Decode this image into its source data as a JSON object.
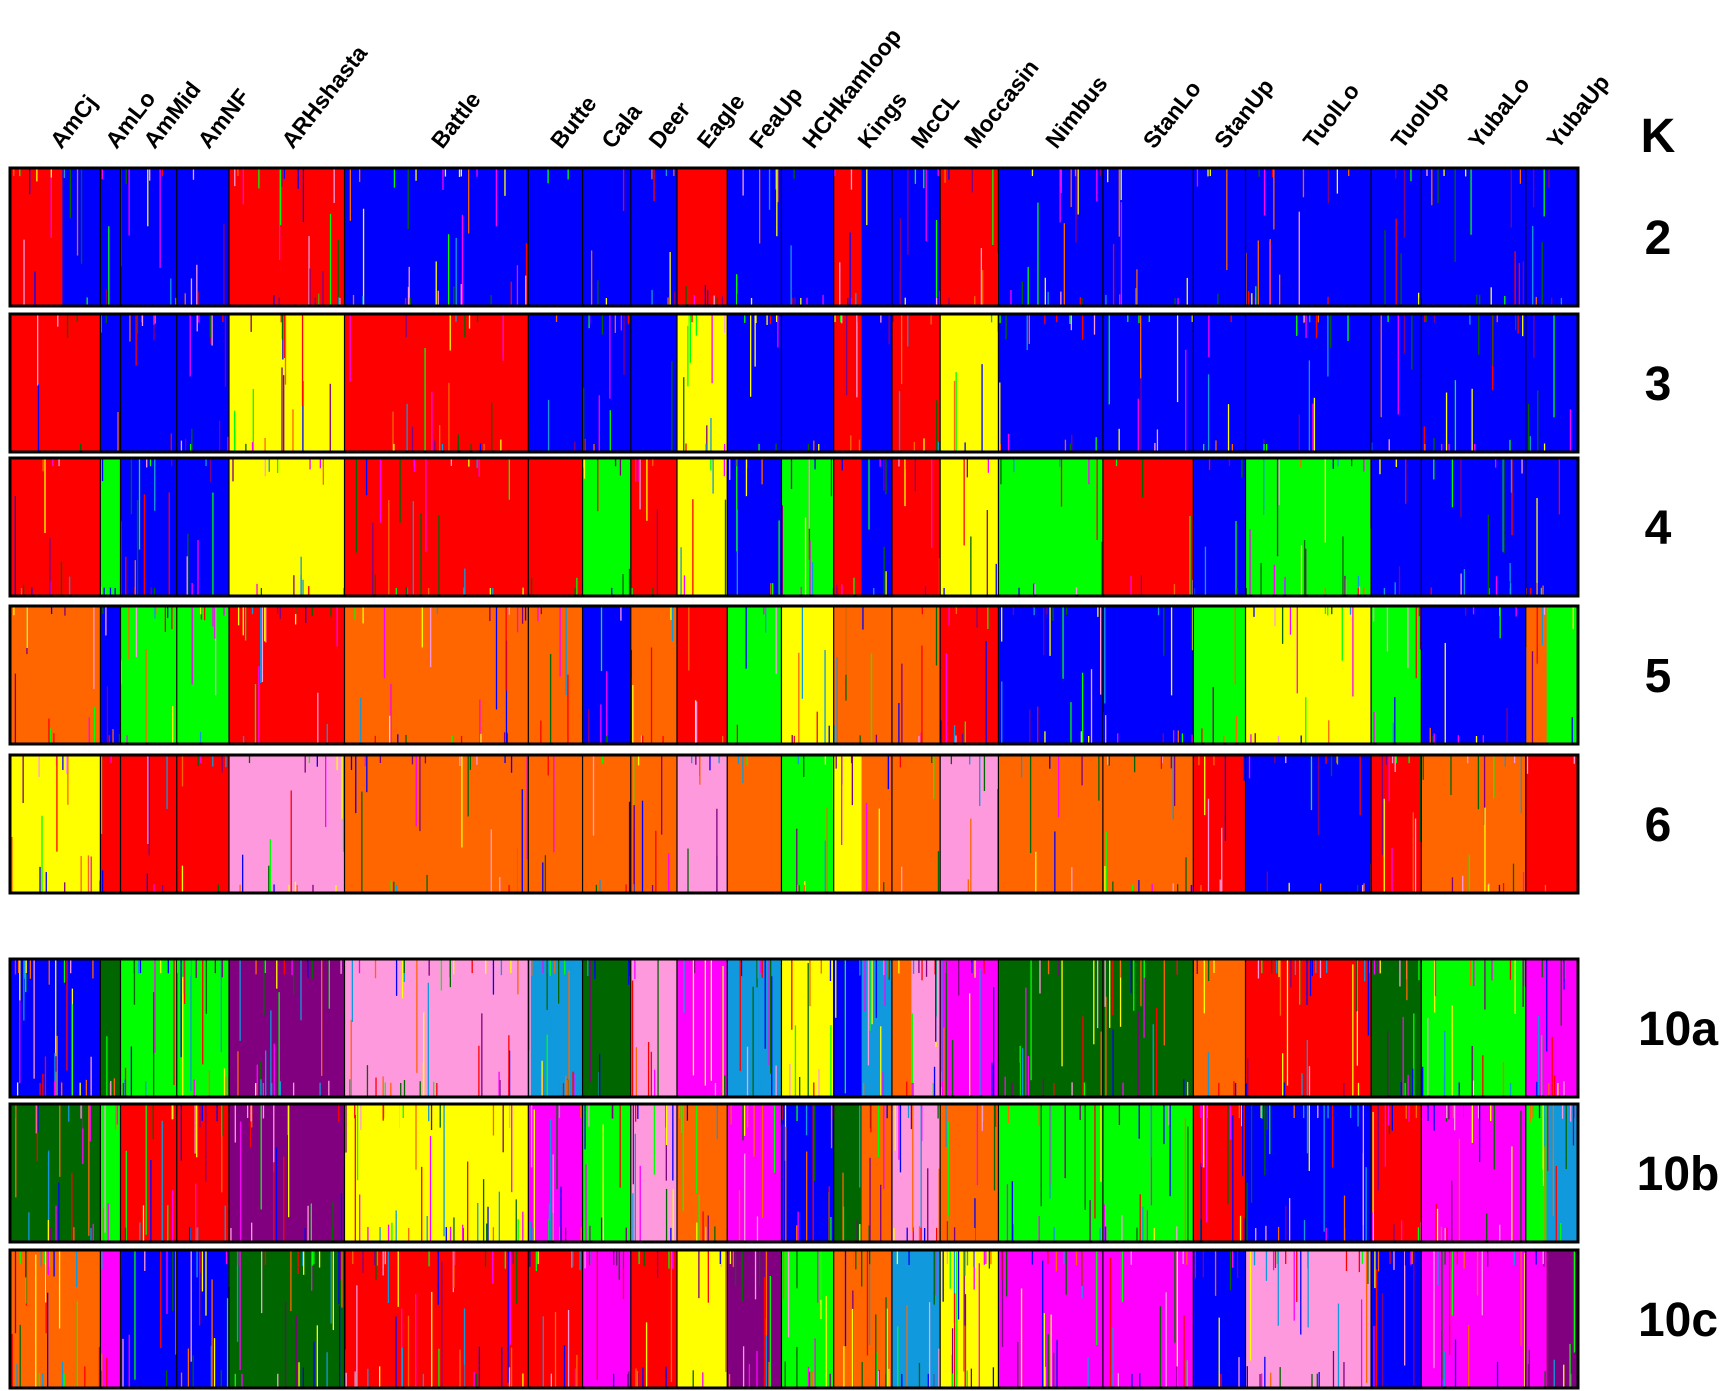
{
  "chart_data": {
    "type": "stacked-bar",
    "k_axis_label": "K",
    "populations": [
      {
        "name": "AmCj",
        "samples": 90
      },
      {
        "name": "AmLo",
        "samples": 20
      },
      {
        "name": "AmMid",
        "samples": 56
      },
      {
        "name": "AmNF",
        "samples": 52
      },
      {
        "name": "ARHshasta",
        "samples": 115
      },
      {
        "name": "Battle",
        "samples": 183
      },
      {
        "name": "Butte",
        "samples": 54
      },
      {
        "name": "Cala",
        "samples": 48
      },
      {
        "name": "Deer",
        "samples": 46
      },
      {
        "name": "Eagle",
        "samples": 50
      },
      {
        "name": "FeaUp",
        "samples": 54
      },
      {
        "name": "HCHkamloop",
        "samples": 52
      },
      {
        "name": "Kings",
        "samples": 58
      },
      {
        "name": "McCL",
        "samples": 48
      },
      {
        "name": "Moccasin",
        "samples": 58
      },
      {
        "name": "Nimbus",
        "samples": 104
      },
      {
        "name": "StanLo",
        "samples": 90
      },
      {
        "name": "StanUp",
        "samples": 52
      },
      {
        "name": "TuolLo",
        "samples": 125
      },
      {
        "name": "TuolUp",
        "samples": 50
      },
      {
        "name": "YubaLo",
        "samples": 104
      },
      {
        "name": "YubaUp",
        "samples": 52
      }
    ],
    "palette": {
      "blue": "#0000FF",
      "red": "#FF0000",
      "yellow": "#FFFF00",
      "green": "#00FF00",
      "orange": "#FF6600",
      "pink": "#FF99DD",
      "purple": "#800080",
      "darkgreen": "#006600",
      "magenta": "#FF00FF",
      "skyblue": "#1199DD"
    },
    "panels": [
      {
        "k": "2",
        "background": "blue",
        "segments": [
          {
            "from": 0,
            "to": 0.58,
            "color": "red"
          },
          {
            "from": 0.58,
            "to": 0.86,
            "color": "blue"
          },
          {
            "from": 0.86,
            "to": 4,
            "color": "blue"
          },
          {
            "from": 4,
            "to": 5,
            "color": "red"
          },
          {
            "from": 5,
            "to": 9,
            "color": "blue"
          },
          {
            "from": 9,
            "to": 10,
            "color": "red"
          },
          {
            "from": 10,
            "to": 12,
            "color": "blue"
          },
          {
            "from": 12,
            "to": 12.48,
            "color": "red"
          },
          {
            "from": 12.48,
            "to": 14,
            "color": "blue"
          },
          {
            "from": 14,
            "to": 15,
            "color": "red"
          },
          {
            "from": 15,
            "to": 22,
            "color": "blue"
          }
        ]
      },
      {
        "k": "3",
        "background": "blue",
        "segments": [
          {
            "from": 0,
            "to": 1,
            "color": "red"
          },
          {
            "from": 1,
            "to": 4,
            "color": "blue"
          },
          {
            "from": 4,
            "to": 5,
            "color": "yellow"
          },
          {
            "from": 5,
            "to": 6,
            "color": "red"
          },
          {
            "from": 6,
            "to": 9,
            "color": "blue"
          },
          {
            "from": 9,
            "to": 10,
            "color": "yellow"
          },
          {
            "from": 10,
            "to": 12,
            "color": "blue"
          },
          {
            "from": 12,
            "to": 12.48,
            "color": "red"
          },
          {
            "from": 12.48,
            "to": 13,
            "color": "blue"
          },
          {
            "from": 13,
            "to": 14,
            "color": "red"
          },
          {
            "from": 14,
            "to": 15,
            "color": "yellow"
          },
          {
            "from": 15,
            "to": 22,
            "color": "blue"
          }
        ]
      },
      {
        "k": "4",
        "background": "blue",
        "segments": [
          {
            "from": 0,
            "to": 1,
            "color": "red"
          },
          {
            "from": 1,
            "to": 2,
            "color": "green"
          },
          {
            "from": 2,
            "to": 4,
            "color": "blue"
          },
          {
            "from": 4,
            "to": 5,
            "color": "yellow"
          },
          {
            "from": 5,
            "to": 7,
            "color": "red"
          },
          {
            "from": 7,
            "to": 8,
            "color": "green"
          },
          {
            "from": 8,
            "to": 9,
            "color": "red"
          },
          {
            "from": 9,
            "to": 10,
            "color": "yellow"
          },
          {
            "from": 10,
            "to": 11,
            "color": "blue"
          },
          {
            "from": 11,
            "to": 12,
            "color": "green"
          },
          {
            "from": 12,
            "to": 12.48,
            "color": "red"
          },
          {
            "from": 12.48,
            "to": 13,
            "color": "blue"
          },
          {
            "from": 13,
            "to": 14,
            "color": "red"
          },
          {
            "from": 14,
            "to": 15,
            "color": "yellow"
          },
          {
            "from": 15,
            "to": 16,
            "color": "green"
          },
          {
            "from": 16,
            "to": 17,
            "color": "red"
          },
          {
            "from": 17,
            "to": 18,
            "color": "blue"
          },
          {
            "from": 18,
            "to": 19,
            "color": "green"
          },
          {
            "from": 19,
            "to": 22,
            "color": "blue"
          }
        ]
      },
      {
        "k": "5",
        "background": "orange",
        "segments": [
          {
            "from": 0,
            "to": 1,
            "color": "orange"
          },
          {
            "from": 1,
            "to": 2,
            "color": "blue"
          },
          {
            "from": 2,
            "to": 4,
            "color": "green"
          },
          {
            "from": 4,
            "to": 5,
            "color": "red"
          },
          {
            "from": 5,
            "to": 7,
            "color": "orange"
          },
          {
            "from": 7,
            "to": 8,
            "color": "blue"
          },
          {
            "from": 8,
            "to": 9,
            "color": "orange"
          },
          {
            "from": 9,
            "to": 10,
            "color": "red"
          },
          {
            "from": 10,
            "to": 11,
            "color": "green"
          },
          {
            "from": 11,
            "to": 12,
            "color": "yellow"
          },
          {
            "from": 12,
            "to": 14,
            "color": "orange"
          },
          {
            "from": 14,
            "to": 15,
            "color": "red"
          },
          {
            "from": 15,
            "to": 17,
            "color": "blue"
          },
          {
            "from": 17,
            "to": 18,
            "color": "green"
          },
          {
            "from": 18,
            "to": 19,
            "color": "yellow"
          },
          {
            "from": 19,
            "to": 20,
            "color": "green"
          },
          {
            "from": 20,
            "to": 21,
            "color": "blue"
          },
          {
            "from": 21,
            "to": 21.4,
            "color": "orange"
          },
          {
            "from": 21.4,
            "to": 22,
            "color": "green"
          }
        ]
      },
      {
        "k": "6",
        "background": "orange",
        "segments": [
          {
            "from": 0,
            "to": 1,
            "color": "yellow"
          },
          {
            "from": 1,
            "to": 4,
            "color": "red"
          },
          {
            "from": 4,
            "to": 5,
            "color": "pink"
          },
          {
            "from": 5,
            "to": 9,
            "color": "orange"
          },
          {
            "from": 9,
            "to": 10,
            "color": "pink"
          },
          {
            "from": 10,
            "to": 11,
            "color": "orange"
          },
          {
            "from": 11,
            "to": 12,
            "color": "green"
          },
          {
            "from": 12,
            "to": 12.48,
            "color": "yellow"
          },
          {
            "from": 12.48,
            "to": 14,
            "color": "orange"
          },
          {
            "from": 14,
            "to": 15,
            "color": "pink"
          },
          {
            "from": 15,
            "to": 17,
            "color": "orange"
          },
          {
            "from": 17,
            "to": 18,
            "color": "red"
          },
          {
            "from": 18,
            "to": 19,
            "color": "blue"
          },
          {
            "from": 19,
            "to": 20,
            "color": "red"
          },
          {
            "from": 20,
            "to": 21,
            "color": "orange"
          },
          {
            "from": 21,
            "to": 22,
            "color": "red"
          }
        ]
      },
      {
        "k": "10a",
        "background": "darkgreen",
        "segments": [
          {
            "from": 0,
            "to": 1,
            "color": "blue"
          },
          {
            "from": 1,
            "to": 2,
            "color": "darkgreen"
          },
          {
            "from": 2,
            "to": 4,
            "color": "green"
          },
          {
            "from": 4,
            "to": 5,
            "color": "purple"
          },
          {
            "from": 5,
            "to": 6,
            "color": "pink"
          },
          {
            "from": 6,
            "to": 7,
            "color": "skyblue"
          },
          {
            "from": 7,
            "to": 8,
            "color": "darkgreen"
          },
          {
            "from": 8,
            "to": 9,
            "color": "pink"
          },
          {
            "from": 9,
            "to": 10,
            "color": "magenta"
          },
          {
            "from": 10,
            "to": 11,
            "color": "skyblue"
          },
          {
            "from": 11,
            "to": 12,
            "color": "yellow"
          },
          {
            "from": 12,
            "to": 12.48,
            "color": "blue"
          },
          {
            "from": 12.48,
            "to": 13,
            "color": "skyblue"
          },
          {
            "from": 13,
            "to": 13.4,
            "color": "orange"
          },
          {
            "from": 13.4,
            "to": 14,
            "color": "pink"
          },
          {
            "from": 14,
            "to": 15,
            "color": "magenta"
          },
          {
            "from": 15,
            "to": 16,
            "color": "darkgreen"
          },
          {
            "from": 16,
            "to": 17,
            "color": "darkgreen"
          },
          {
            "from": 17,
            "to": 18,
            "color": "orange"
          },
          {
            "from": 18,
            "to": 19,
            "color": "red"
          },
          {
            "from": 19,
            "to": 20,
            "color": "darkgreen"
          },
          {
            "from": 20,
            "to": 21,
            "color": "green"
          },
          {
            "from": 21,
            "to": 22,
            "color": "magenta"
          }
        ]
      },
      {
        "k": "10b",
        "background": "red",
        "segments": [
          {
            "from": 0,
            "to": 1,
            "color": "darkgreen"
          },
          {
            "from": 1,
            "to": 2,
            "color": "green"
          },
          {
            "from": 2,
            "to": 4,
            "color": "red"
          },
          {
            "from": 4,
            "to": 5,
            "color": "purple"
          },
          {
            "from": 5,
            "to": 6,
            "color": "yellow"
          },
          {
            "from": 6,
            "to": 7,
            "color": "magenta"
          },
          {
            "from": 7,
            "to": 8,
            "color": "green"
          },
          {
            "from": 8,
            "to": 9,
            "color": "pink"
          },
          {
            "from": 9,
            "to": 10,
            "color": "orange"
          },
          {
            "from": 10,
            "to": 11,
            "color": "magenta"
          },
          {
            "from": 11,
            "to": 12,
            "color": "blue"
          },
          {
            "from": 12,
            "to": 12.48,
            "color": "darkgreen"
          },
          {
            "from": 12.48,
            "to": 13,
            "color": "orange"
          },
          {
            "from": 13,
            "to": 14,
            "color": "pink"
          },
          {
            "from": 14,
            "to": 15,
            "color": "orange"
          },
          {
            "from": 15,
            "to": 16,
            "color": "green"
          },
          {
            "from": 16,
            "to": 17,
            "color": "green"
          },
          {
            "from": 17,
            "to": 18,
            "color": "red"
          },
          {
            "from": 18,
            "to": 19,
            "color": "blue"
          },
          {
            "from": 19,
            "to": 20,
            "color": "red"
          },
          {
            "from": 20,
            "to": 21,
            "color": "magenta"
          },
          {
            "from": 21,
            "to": 21.4,
            "color": "green"
          },
          {
            "from": 21.4,
            "to": 22,
            "color": "skyblue"
          }
        ]
      },
      {
        "k": "10c",
        "background": "red",
        "segments": [
          {
            "from": 0,
            "to": 1,
            "color": "orange"
          },
          {
            "from": 1,
            "to": 2,
            "color": "magenta"
          },
          {
            "from": 2,
            "to": 4,
            "color": "blue"
          },
          {
            "from": 4,
            "to": 5,
            "color": "darkgreen"
          },
          {
            "from": 5,
            "to": 7,
            "color": "red"
          },
          {
            "from": 7,
            "to": 8,
            "color": "magenta"
          },
          {
            "from": 8,
            "to": 9,
            "color": "red"
          },
          {
            "from": 9,
            "to": 10,
            "color": "yellow"
          },
          {
            "from": 10,
            "to": 11,
            "color": "purple"
          },
          {
            "from": 11,
            "to": 12,
            "color": "green"
          },
          {
            "from": 12,
            "to": 13,
            "color": "orange"
          },
          {
            "from": 13,
            "to": 14,
            "color": "skyblue"
          },
          {
            "from": 14,
            "to": 15,
            "color": "yellow"
          },
          {
            "from": 15,
            "to": 16,
            "color": "magenta"
          },
          {
            "from": 16,
            "to": 17,
            "color": "magenta"
          },
          {
            "from": 17,
            "to": 18,
            "color": "blue"
          },
          {
            "from": 18,
            "to": 19,
            "color": "pink"
          },
          {
            "from": 19,
            "to": 20,
            "color": "blue"
          },
          {
            "from": 20,
            "to": 21,
            "color": "magenta"
          },
          {
            "from": 21,
            "to": 21.4,
            "color": "magenta"
          },
          {
            "from": 21.4,
            "to": 22,
            "color": "purple"
          }
        ]
      }
    ]
  }
}
